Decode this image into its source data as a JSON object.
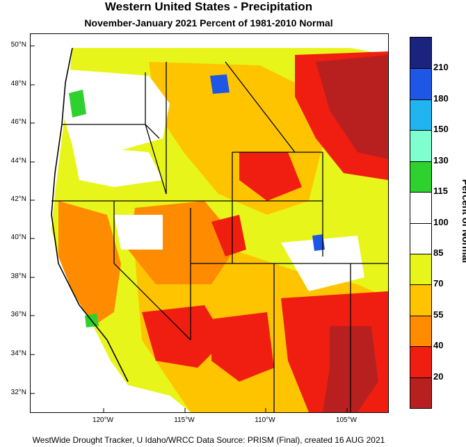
{
  "title": "Western United States - Precipitation",
  "subtitle": "November-January 2021  Percent of 1981-2010 Normal",
  "footer": "WestWide Drought Tracker, U Idaho/WRCC Data Source: PRISM (Final), created 16 AUG 2021",
  "lat_labels": [
    "50°N",
    "48°N",
    "46°N",
    "44°N",
    "42°N",
    "40°N",
    "38°N",
    "36°N",
    "34°N",
    "32°N"
  ],
  "lon_labels": [
    "120°W",
    "115°W",
    "110°W",
    "105°W"
  ],
  "colorbar": {
    "title": "Percent of Normal",
    "labels": [
      "210",
      "180",
      "150",
      "130",
      "115",
      "100",
      "85",
      "70",
      "55",
      "40",
      "20"
    ],
    "colors": [
      "#1a237e",
      "#1e56e6",
      "#20b4f0",
      "#7fffd0",
      "#2ed12e",
      "#ffffff",
      "#ffffff",
      "#e8f51a",
      "#ffc400",
      "#ff8c00",
      "#f01e10",
      "#b82020"
    ]
  },
  "regions": {
    "ocean_color": "#ffffff",
    "dry_dark": "#b82020",
    "dry_red": "#f01e10",
    "dry_orange": "#ff8c00",
    "dry_amber": "#ffc400",
    "near_yellow": "#e8f51a",
    "normal": "#ffffff",
    "wet_green": "#2ed12e",
    "wet_blue": "#1e56e6"
  }
}
